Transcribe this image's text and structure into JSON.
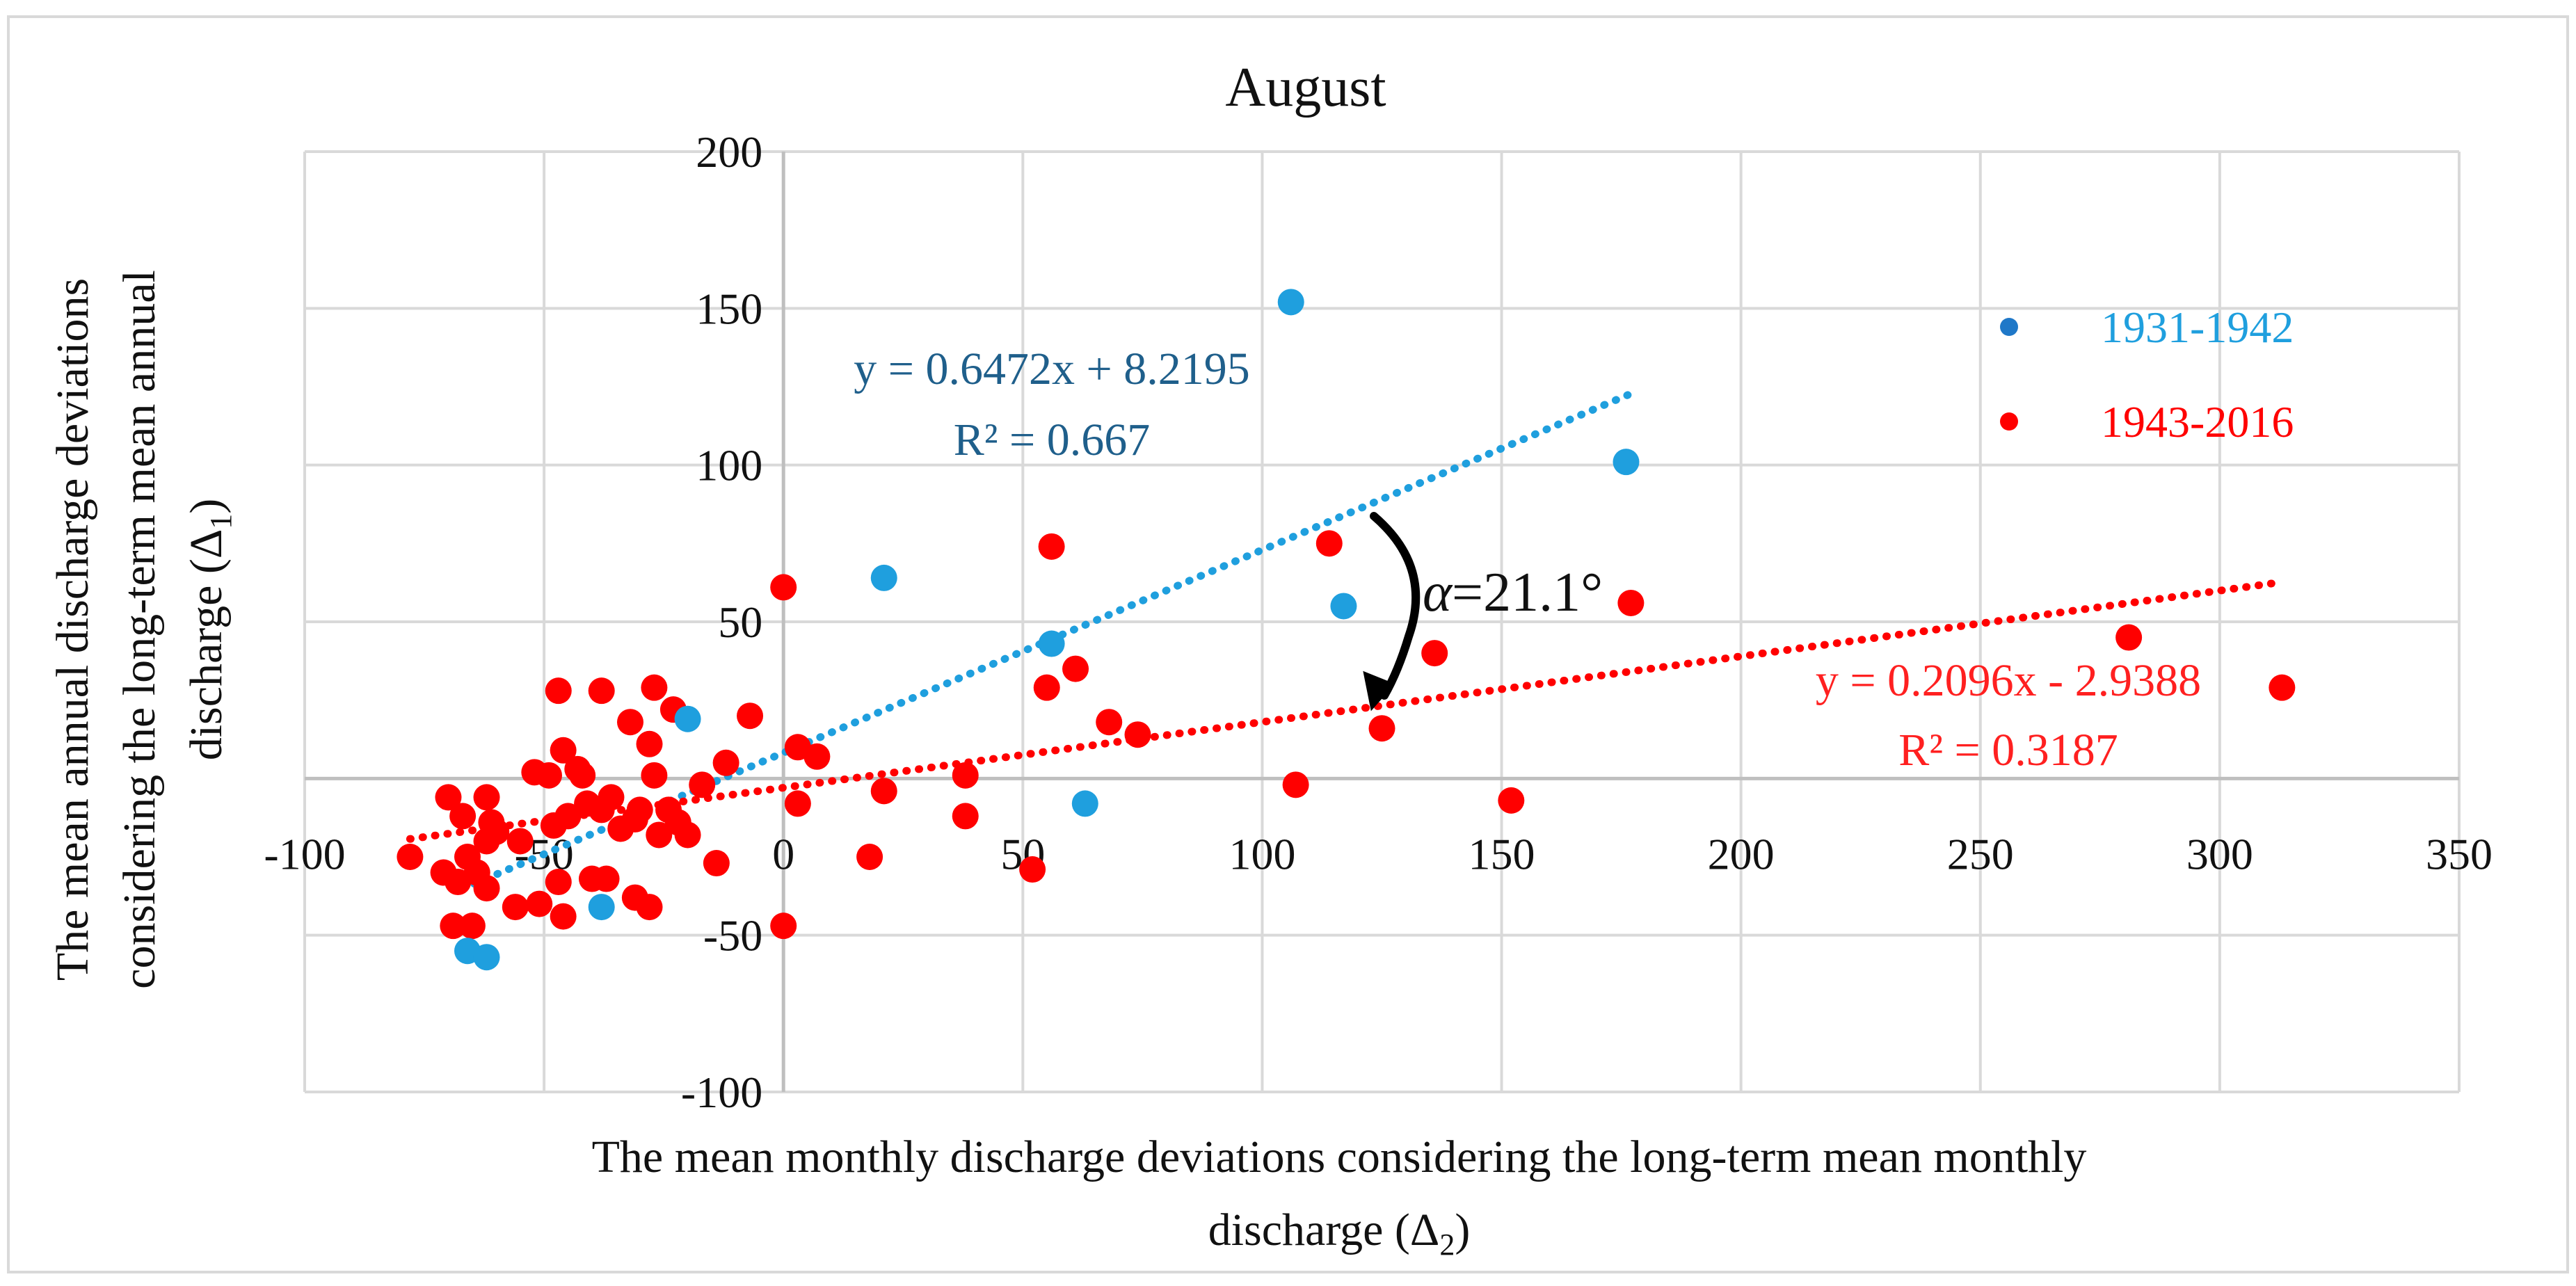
{
  "chart_data": {
    "type": "scatter",
    "title": "August",
    "xlabel_line1": "The mean monthly discharge deviations considering the long-term mean monthly",
    "xlabel_line2": "discharge (Δ",
    "xlabel_sub": "2",
    "xlabel_close": ")",
    "ylabel_line1": "The mean annual discharge deviations",
    "ylabel_line2": "considering the long-term mean annual",
    "ylabel_line3": "discharge (Δ",
    "ylabel_sub": "1",
    "ylabel_close": ")",
    "xlim": [
      -100,
      350
    ],
    "ylim": [
      -100,
      200
    ],
    "x_ticks": [
      -100,
      -50,
      0,
      50,
      100,
      150,
      200,
      250,
      300,
      350
    ],
    "y_ticks": [
      -100,
      -50,
      0,
      50,
      100,
      150,
      200
    ],
    "x_tick_labels": [
      "-100",
      "-50",
      "0",
      "50",
      "100",
      "150",
      "200",
      "250",
      "300",
      "350"
    ],
    "y_tick_labels": [
      "-100",
      "-50",
      "50",
      "100",
      "150",
      "200"
    ],
    "y_tick_label_values": [
      -100,
      -50,
      50,
      100,
      150,
      200
    ],
    "grid": true,
    "legend_position": "right",
    "series": [
      {
        "name": "1931-1942",
        "color": "#1f9fde",
        "legend_color": "#1f78c8",
        "trendline": {
          "slope": 0.6472,
          "intercept": 8.2195,
          "x_range": [
            -67,
            177
          ]
        },
        "equation": "y = 0.6472x + 8.2195",
        "r2": "R² = 0.667",
        "label_color": "#1f5f8b",
        "points": [
          {
            "x": 106,
            "y": 152
          },
          {
            "x": 176,
            "y": 101
          },
          {
            "x": 21,
            "y": 64
          },
          {
            "x": 56,
            "y": 43
          },
          {
            "x": 117,
            "y": 55
          },
          {
            "x": -20,
            "y": 19
          },
          {
            "x": 63,
            "y": -8
          },
          {
            "x": -38,
            "y": -41
          },
          {
            "x": -66,
            "y": -55
          },
          {
            "x": -62,
            "y": -57
          }
        ]
      },
      {
        "name": "1943-2016",
        "color": "#ff0000",
        "legend_color": "#ff0000",
        "trendline": {
          "slope": 0.2096,
          "intercept": -2.9388,
          "x_range": [
            -78,
            313
          ]
        },
        "equation": "y = 0.2096x - 2.9388",
        "r2": "R² = 0.3187",
        "label_color": "#ff2020",
        "points": [
          {
            "x": 0,
            "y": 61
          },
          {
            "x": 56,
            "y": 74
          },
          {
            "x": 114,
            "y": 75
          },
          {
            "x": 177,
            "y": 56
          },
          {
            "x": 136,
            "y": 40
          },
          {
            "x": 281,
            "y": 45
          },
          {
            "x": 313,
            "y": 29
          },
          {
            "x": 61,
            "y": 35
          },
          {
            "x": 55,
            "y": 29
          },
          {
            "x": 68,
            "y": 18
          },
          {
            "x": 74,
            "y": 14
          },
          {
            "x": 125,
            "y": 16
          },
          {
            "x": 107,
            "y": -2
          },
          {
            "x": 152,
            "y": -7
          },
          {
            "x": 52,
            "y": -29
          },
          {
            "x": 38,
            "y": 1
          },
          {
            "x": 38,
            "y": -12
          },
          {
            "x": 21,
            "y": -4
          },
          {
            "x": 18,
            "y": -25
          },
          {
            "x": 7,
            "y": 7
          },
          {
            "x": 3,
            "y": 10
          },
          {
            "x": 3,
            "y": -8
          },
          {
            "x": 0,
            "y": -47
          },
          {
            "x": -7,
            "y": 20
          },
          {
            "x": -12,
            "y": 5
          },
          {
            "x": -14,
            "y": -27
          },
          {
            "x": -17,
            "y": -2
          },
          {
            "x": -20,
            "y": -18
          },
          {
            "x": -22,
            "y": -14
          },
          {
            "x": -23,
            "y": 22
          },
          {
            "x": -24,
            "y": -10
          },
          {
            "x": -26,
            "y": -18
          },
          {
            "x": -27,
            "y": 29
          },
          {
            "x": -27,
            "y": 1
          },
          {
            "x": -28,
            "y": 11
          },
          {
            "x": -28,
            "y": -41
          },
          {
            "x": -30,
            "y": -10
          },
          {
            "x": -31,
            "y": -13
          },
          {
            "x": -31,
            "y": -38
          },
          {
            "x": -32,
            "y": 18
          },
          {
            "x": -34,
            "y": -16
          },
          {
            "x": -36,
            "y": -6
          },
          {
            "x": -37,
            "y": -32
          },
          {
            "x": -38,
            "y": -10
          },
          {
            "x": -38,
            "y": 28
          },
          {
            "x": -40,
            "y": -32
          },
          {
            "x": -41,
            "y": -8
          },
          {
            "x": -42,
            "y": 1
          },
          {
            "x": -43,
            "y": 3
          },
          {
            "x": -45,
            "y": -12
          },
          {
            "x": -46,
            "y": -44
          },
          {
            "x": -46,
            "y": 9
          },
          {
            "x": -47,
            "y": 28
          },
          {
            "x": -47,
            "y": -33
          },
          {
            "x": -48,
            "y": -15
          },
          {
            "x": -49,
            "y": 1
          },
          {
            "x": -51,
            "y": -40
          },
          {
            "x": -52,
            "y": 2
          },
          {
            "x": -55,
            "y": -20
          },
          {
            "x": -56,
            "y": -41
          },
          {
            "x": -60,
            "y": -17
          },
          {
            "x": -61,
            "y": -14
          },
          {
            "x": -62,
            "y": -20
          },
          {
            "x": -62,
            "y": -6
          },
          {
            "x": -62,
            "y": -35
          },
          {
            "x": -64,
            "y": -30
          },
          {
            "x": -65,
            "y": -47
          },
          {
            "x": -66,
            "y": -25
          },
          {
            "x": -67,
            "y": -12
          },
          {
            "x": -68,
            "y": -33
          },
          {
            "x": -69,
            "y": -47
          },
          {
            "x": -70,
            "y": -6
          },
          {
            "x": -71,
            "y": -30
          },
          {
            "x": -78,
            "y": -25
          }
        ]
      }
    ],
    "annotation": {
      "symbol": "α",
      "text": "=21.1°"
    }
  }
}
